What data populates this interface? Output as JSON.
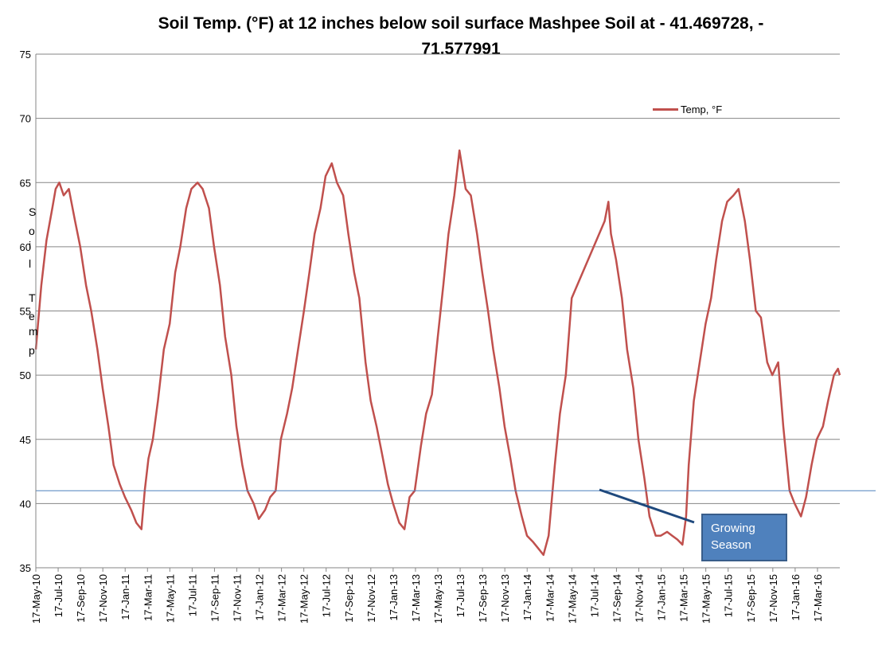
{
  "chart_data": {
    "type": "line",
    "title": "Soil Temp. (°F) at 12 inches below soil surface Mashpee Soil at - 41.469728, -71.577991",
    "title_lines": [
      "Soil Temp. (°F) at 12 inches below soil surface Mashpee Soil at - 41.469728, -",
      "71.577991"
    ],
    "ylabel": "Soil Temp",
    "ylabel_chars": [
      "S",
      "o",
      "i",
      "l",
      "T",
      "e",
      "m",
      "p"
    ],
    "ylim": [
      35,
      75
    ],
    "yticks": [
      35,
      40,
      45,
      50,
      55,
      60,
      65,
      70,
      75
    ],
    "grid": true,
    "legend_position": "top-right",
    "x_tick_labels": [
      "17-May-10",
      "17-Jul-10",
      "17-Sep-10",
      "17-Nov-10",
      "17-Jan-11",
      "17-Mar-11",
      "17-May-11",
      "17-Jul-11",
      "17-Sep-11",
      "17-Nov-11",
      "17-Jan-12",
      "17-Mar-12",
      "17-May-12",
      "17-Jul-12",
      "17-Sep-12",
      "17-Nov-12",
      "17-Jan-13",
      "17-Mar-13",
      "17-May-13",
      "17-Jul-13",
      "17-Sep-13",
      "17-Nov-13",
      "17-Jan-14",
      "17-Mar-14",
      "17-May-14",
      "17-Jul-14",
      "17-Sep-14",
      "17-Nov-14",
      "17-Jan-15",
      "17-Mar-15",
      "17-May-15",
      "17-Jul-15",
      "17-Sep-15",
      "17-Nov-15",
      "17-Jan-16",
      "17-Mar-16"
    ],
    "x_range": [
      "2010-05-17",
      "2016-05-17"
    ],
    "series": [
      {
        "name": "Temp, °F",
        "color": "#c0504d",
        "points": [
          [
            "2010-05-17",
            52.0
          ],
          [
            "2010-06-01",
            57.0
          ],
          [
            "2010-06-15",
            60.5
          ],
          [
            "2010-07-01",
            63.0
          ],
          [
            "2010-07-10",
            64.5
          ],
          [
            "2010-07-20",
            65.0
          ],
          [
            "2010-08-01",
            64.0
          ],
          [
            "2010-08-15",
            64.5
          ],
          [
            "2010-09-01",
            62.0
          ],
          [
            "2010-09-15",
            60.0
          ],
          [
            "2010-10-01",
            57.0
          ],
          [
            "2010-10-15",
            55.0
          ],
          [
            "2010-11-01",
            52.0
          ],
          [
            "2010-11-15",
            49.0
          ],
          [
            "2010-12-01",
            46.0
          ],
          [
            "2010-12-15",
            43.0
          ],
          [
            "2011-01-01",
            41.5
          ],
          [
            "2011-01-15",
            40.5
          ],
          [
            "2011-02-01",
            39.5
          ],
          [
            "2011-02-15",
            38.5
          ],
          [
            "2011-03-01",
            38.0
          ],
          [
            "2011-03-10",
            41.0
          ],
          [
            "2011-03-20",
            43.5
          ],
          [
            "2011-04-01",
            45.0
          ],
          [
            "2011-04-15",
            48.0
          ],
          [
            "2011-05-01",
            52.0
          ],
          [
            "2011-05-17",
            54.0
          ],
          [
            "2011-06-01",
            58.0
          ],
          [
            "2011-06-15",
            60.0
          ],
          [
            "2011-07-01",
            63.0
          ],
          [
            "2011-07-15",
            64.5
          ],
          [
            "2011-08-01",
            65.0
          ],
          [
            "2011-08-15",
            64.5
          ],
          [
            "2011-09-01",
            63.0
          ],
          [
            "2011-09-15",
            60.0
          ],
          [
            "2011-10-01",
            57.0
          ],
          [
            "2011-10-15",
            53.0
          ],
          [
            "2011-11-01",
            50.0
          ],
          [
            "2011-11-15",
            46.0
          ],
          [
            "2011-12-01",
            43.0
          ],
          [
            "2011-12-15",
            41.0
          ],
          [
            "2012-01-01",
            40.0
          ],
          [
            "2012-01-15",
            38.8
          ],
          [
            "2012-02-01",
            39.5
          ],
          [
            "2012-02-15",
            40.5
          ],
          [
            "2012-03-01",
            41.0
          ],
          [
            "2012-03-15",
            45.0
          ],
          [
            "2012-04-01",
            47.0
          ],
          [
            "2012-04-15",
            49.0
          ],
          [
            "2012-05-01",
            52.0
          ],
          [
            "2012-05-17",
            55.0
          ],
          [
            "2012-06-01",
            58.0
          ],
          [
            "2012-06-15",
            61.0
          ],
          [
            "2012-07-01",
            63.0
          ],
          [
            "2012-07-15",
            65.5
          ],
          [
            "2012-08-01",
            66.5
          ],
          [
            "2012-08-15",
            65.0
          ],
          [
            "2012-09-01",
            64.0
          ],
          [
            "2012-09-15",
            61.0
          ],
          [
            "2012-10-01",
            58.0
          ],
          [
            "2012-10-15",
            56.0
          ],
          [
            "2012-11-01",
            51.0
          ],
          [
            "2012-11-15",
            48.0
          ],
          [
            "2012-12-01",
            46.0
          ],
          [
            "2012-12-15",
            44.0
          ],
          [
            "2013-01-01",
            41.5
          ],
          [
            "2013-01-15",
            40.0
          ],
          [
            "2013-02-01",
            38.5
          ],
          [
            "2013-02-15",
            38.0
          ],
          [
            "2013-03-01",
            40.5
          ],
          [
            "2013-03-15",
            41.0
          ],
          [
            "2013-04-01",
            44.5
          ],
          [
            "2013-04-15",
            47.0
          ],
          [
            "2013-05-01",
            48.5
          ],
          [
            "2013-05-17",
            53.0
          ],
          [
            "2013-06-01",
            57.0
          ],
          [
            "2013-06-15",
            61.0
          ],
          [
            "2013-07-01",
            64.0
          ],
          [
            "2013-07-15",
            67.5
          ],
          [
            "2013-08-01",
            64.5
          ],
          [
            "2013-08-15",
            64.0
          ],
          [
            "2013-09-01",
            61.0
          ],
          [
            "2013-09-15",
            58.0
          ],
          [
            "2013-10-01",
            55.0
          ],
          [
            "2013-10-15",
            52.0
          ],
          [
            "2013-11-01",
            49.0
          ],
          [
            "2013-11-15",
            46.0
          ],
          [
            "2013-12-01",
            43.5
          ],
          [
            "2013-12-15",
            41.0
          ],
          [
            "2014-01-01",
            39.0
          ],
          [
            "2014-01-15",
            37.5
          ],
          [
            "2014-02-01",
            37.0
          ],
          [
            "2014-02-15",
            36.5
          ],
          [
            "2014-03-01",
            36.0
          ],
          [
            "2014-03-15",
            37.5
          ],
          [
            "2014-04-01",
            43.0
          ],
          [
            "2014-04-15",
            47.0
          ],
          [
            "2014-05-01",
            50.0
          ],
          [
            "2014-05-17",
            56.0
          ],
          [
            "2014-08-15",
            62.0
          ],
          [
            "2014-08-25",
            63.5
          ],
          [
            "2014-09-01",
            61.0
          ],
          [
            "2014-09-15",
            59.0
          ],
          [
            "2014-10-01",
            56.0
          ],
          [
            "2014-10-15",
            52.0
          ],
          [
            "2014-11-01",
            49.0
          ],
          [
            "2014-11-15",
            45.0
          ],
          [
            "2014-12-01",
            42.0
          ],
          [
            "2014-12-15",
            39.0
          ],
          [
            "2015-01-01",
            37.5
          ],
          [
            "2015-01-15",
            37.5
          ],
          [
            "2015-02-01",
            37.8
          ],
          [
            "2015-02-15",
            37.5
          ],
          [
            "2015-03-01",
            37.2
          ],
          [
            "2015-03-15",
            36.8
          ],
          [
            "2015-03-25",
            39.0
          ],
          [
            "2015-04-01",
            43.0
          ],
          [
            "2015-04-15",
            48.0
          ],
          [
            "2015-05-01",
            51.0
          ],
          [
            "2015-05-17",
            54.0
          ],
          [
            "2015-06-01",
            56.0
          ],
          [
            "2015-06-15",
            59.0
          ],
          [
            "2015-07-01",
            62.0
          ],
          [
            "2015-07-15",
            63.5
          ],
          [
            "2015-08-01",
            64.0
          ],
          [
            "2015-08-15",
            64.5
          ],
          [
            "2015-09-01",
            62.0
          ],
          [
            "2015-09-15",
            59.0
          ],
          [
            "2015-10-01",
            55.0
          ],
          [
            "2015-10-15",
            54.5
          ],
          [
            "2015-11-01",
            51.0
          ],
          [
            "2015-11-15",
            50.0
          ],
          [
            "2015-12-01",
            51.0
          ],
          [
            "2015-12-15",
            46.0
          ],
          [
            "2016-01-01",
            41.0
          ],
          [
            "2016-01-15",
            40.0
          ],
          [
            "2016-02-01",
            39.0
          ],
          [
            "2016-02-15",
            40.5
          ],
          [
            "2016-03-01",
            43.0
          ],
          [
            "2016-03-15",
            45.0
          ],
          [
            "2016-04-01",
            46.0
          ],
          [
            "2016-04-15",
            48.0
          ],
          [
            "2016-05-01",
            50.0
          ],
          [
            "2016-05-12",
            50.5
          ],
          [
            "2016-05-17",
            50.0
          ]
        ]
      }
    ],
    "reference_line": {
      "y": 41
    },
    "annotation": {
      "label": "Growing Season",
      "lines": [
        "Growing",
        "Season"
      ]
    }
  }
}
